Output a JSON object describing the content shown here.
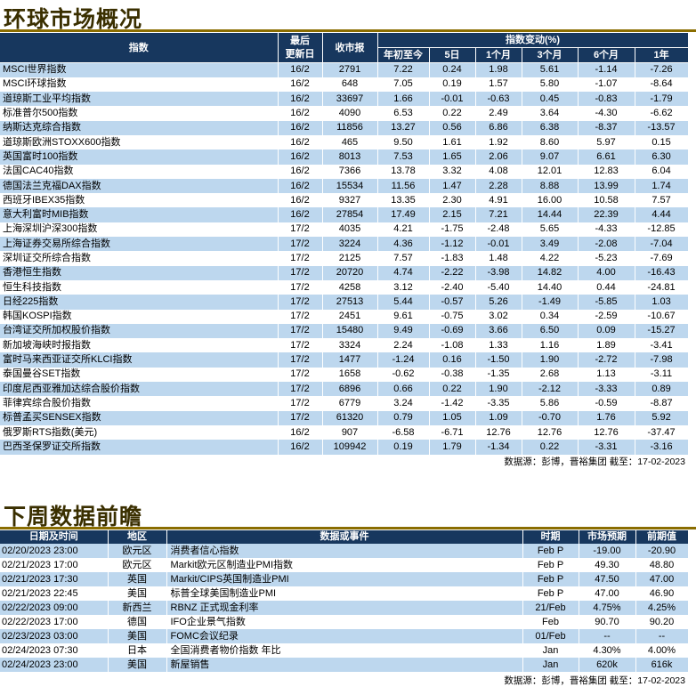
{
  "market": {
    "title": "环球市场概况",
    "headers": {
      "index": "指数",
      "last_update": "最后\n更新日",
      "close": "收市报",
      "change_group": "指数变动(%)",
      "periods": [
        "年初至今",
        "5日",
        "1个月",
        "3个月",
        "6个月",
        "1年"
      ]
    },
    "rows": [
      {
        "name": "MSCI世界指数",
        "date": "16/2",
        "close": "2791",
        "ytd": "7.22",
        "d5": "0.24",
        "m1": "1.98",
        "m3": "5.61",
        "m6": "-1.14",
        "y1": "-7.26"
      },
      {
        "name": "MSCI环球指数",
        "date": "16/2",
        "close": "648",
        "ytd": "7.05",
        "d5": "0.19",
        "m1": "1.57",
        "m3": "5.80",
        "m6": "-1.07",
        "y1": "-8.64"
      },
      {
        "name": "道琼斯工业平均指数",
        "date": "16/2",
        "close": "33697",
        "ytd": "1.66",
        "d5": "-0.01",
        "m1": "-0.63",
        "m3": "0.45",
        "m6": "-0.83",
        "y1": "-1.79"
      },
      {
        "name": "标准普尔500指数",
        "date": "16/2",
        "close": "4090",
        "ytd": "6.53",
        "d5": "0.22",
        "m1": "2.49",
        "m3": "3.64",
        "m6": "-4.30",
        "y1": "-6.62"
      },
      {
        "name": "纳斯达克综合指数",
        "date": "16/2",
        "close": "11856",
        "ytd": "13.27",
        "d5": "0.56",
        "m1": "6.86",
        "m3": "6.38",
        "m6": "-8.37",
        "y1": "-13.57"
      },
      {
        "name": "道琼斯欧洲STOXX600指数",
        "date": "16/2",
        "close": "465",
        "ytd": "9.50",
        "d5": "1.61",
        "m1": "1.92",
        "m3": "8.60",
        "m6": "5.97",
        "y1": "0.15"
      },
      {
        "name": "英国富时100指数",
        "date": "16/2",
        "close": "8013",
        "ytd": "7.53",
        "d5": "1.65",
        "m1": "2.06",
        "m3": "9.07",
        "m6": "6.61",
        "y1": "6.30"
      },
      {
        "name": "法国CAC40指数",
        "date": "16/2",
        "close": "7366",
        "ytd": "13.78",
        "d5": "3.32",
        "m1": "4.08",
        "m3": "12.01",
        "m6": "12.83",
        "y1": "6.04"
      },
      {
        "name": "德国法兰克福DAX指数",
        "date": "16/2",
        "close": "15534",
        "ytd": "11.56",
        "d5": "1.47",
        "m1": "2.28",
        "m3": "8.88",
        "m6": "13.99",
        "y1": "1.74"
      },
      {
        "name": "西班牙IBEX35指数",
        "date": "16/2",
        "close": "9327",
        "ytd": "13.35",
        "d5": "2.30",
        "m1": "4.91",
        "m3": "16.00",
        "m6": "10.58",
        "y1": "7.57"
      },
      {
        "name": "意大利富时MIB指数",
        "date": "16/2",
        "close": "27854",
        "ytd": "17.49",
        "d5": "2.15",
        "m1": "7.21",
        "m3": "14.44",
        "m6": "22.39",
        "y1": "4.44"
      },
      {
        "name": "上海深圳沪深300指数",
        "date": "17/2",
        "close": "4035",
        "ytd": "4.21",
        "d5": "-1.75",
        "m1": "-2.48",
        "m3": "5.65",
        "m6": "-4.33",
        "y1": "-12.85"
      },
      {
        "name": "上海证券交易所综合指数",
        "date": "17/2",
        "close": "3224",
        "ytd": "4.36",
        "d5": "-1.12",
        "m1": "-0.01",
        "m3": "3.49",
        "m6": "-2.08",
        "y1": "-7.04"
      },
      {
        "name": "深圳证交所综合指数",
        "date": "17/2",
        "close": "2125",
        "ytd": "7.57",
        "d5": "-1.83",
        "m1": "1.48",
        "m3": "4.22",
        "m6": "-5.23",
        "y1": "-7.69"
      },
      {
        "name": "香港恒生指数",
        "date": "17/2",
        "close": "20720",
        "ytd": "4.74",
        "d5": "-2.22",
        "m1": "-3.98",
        "m3": "14.82",
        "m6": "4.00",
        "y1": "-16.43"
      },
      {
        "name": "恒生科技指数",
        "date": "17/2",
        "close": "4258",
        "ytd": "3.12",
        "d5": "-2.40",
        "m1": "-5.40",
        "m3": "14.40",
        "m6": "0.44",
        "y1": "-24.81"
      },
      {
        "name": "日经225指数",
        "date": "17/2",
        "close": "27513",
        "ytd": "5.44",
        "d5": "-0.57",
        "m1": "5.26",
        "m3": "-1.49",
        "m6": "-5.85",
        "y1": "1.03"
      },
      {
        "name": "韩国KOSPI指数",
        "date": "17/2",
        "close": "2451",
        "ytd": "9.61",
        "d5": "-0.75",
        "m1": "3.02",
        "m3": "0.34",
        "m6": "-2.59",
        "y1": "-10.67"
      },
      {
        "name": "台湾证交所加权股价指数",
        "date": "17/2",
        "close": "15480",
        "ytd": "9.49",
        "d5": "-0.69",
        "m1": "3.66",
        "m3": "6.50",
        "m6": "0.09",
        "y1": "-15.27"
      },
      {
        "name": "新加坡海峡时报指数",
        "date": "17/2",
        "close": "3324",
        "ytd": "2.24",
        "d5": "-1.08",
        "m1": "1.33",
        "m3": "1.16",
        "m6": "1.89",
        "y1": "-3.41"
      },
      {
        "name": "富时马来西亚证交所KLCI指数",
        "date": "17/2",
        "close": "1477",
        "ytd": "-1.24",
        "d5": "0.16",
        "m1": "-1.50",
        "m3": "1.90",
        "m6": "-2.72",
        "y1": "-7.98"
      },
      {
        "name": "泰国曼谷SET指数",
        "date": "17/2",
        "close": "1658",
        "ytd": "-0.62",
        "d5": "-0.38",
        "m1": "-1.35",
        "m3": "2.68",
        "m6": "1.13",
        "y1": "-3.11"
      },
      {
        "name": "印度尼西亚雅加达综合股价指数",
        "date": "17/2",
        "close": "6896",
        "ytd": "0.66",
        "d5": "0.22",
        "m1": "1.90",
        "m3": "-2.12",
        "m6": "-3.33",
        "y1": "0.89"
      },
      {
        "name": "菲律宾综合股价指数",
        "date": "17/2",
        "close": "6779",
        "ytd": "3.24",
        "d5": "-1.42",
        "m1": "-3.35",
        "m3": "5.86",
        "m6": "-0.59",
        "y1": "-8.87"
      },
      {
        "name": "标普孟买SENSEX指数",
        "date": "17/2",
        "close": "61320",
        "ytd": "0.79",
        "d5": "1.05",
        "m1": "1.09",
        "m3": "-0.70",
        "m6": "1.76",
        "y1": "5.92"
      },
      {
        "name": "俄罗斯RTS指数(美元)",
        "date": "16/2",
        "close": "907",
        "ytd": "-6.58",
        "d5": "-6.71",
        "m1": "12.76",
        "m3": "12.76",
        "m6": "12.76",
        "y1": "-37.47"
      },
      {
        "name": "巴西圣保罗证交所指数",
        "date": "16/2",
        "close": "109942",
        "ytd": "0.19",
        "d5": "1.79",
        "m1": "-1.34",
        "m3": "0.22",
        "m6": "-3.31",
        "y1": "-3.16"
      }
    ],
    "source": "数据源：彭博，晋裕集团 截至：17-02-2023"
  },
  "calendar": {
    "title": "下周数据前瞻",
    "headers": {
      "datetime": "日期及时间",
      "region": "地区",
      "event": "数据或事件",
      "period": "时期",
      "forecast": "市场预期",
      "previous": "前期值"
    },
    "rows": [
      {
        "datetime": "02/20/2023 23:00",
        "region": "欧元区",
        "event": "消费者信心指数",
        "period": "Feb P",
        "forecast": "-19.00",
        "previous": "-20.90"
      },
      {
        "datetime": "02/21/2023 17:00",
        "region": "欧元区",
        "event": "Markit欧元区制造业PMI指数",
        "period": "Feb P",
        "forecast": "49.30",
        "previous": "48.80"
      },
      {
        "datetime": "02/21/2023 17:30",
        "region": "英国",
        "event": "Markit/CIPS英国制造业PMI",
        "period": "Feb P",
        "forecast": "47.50",
        "previous": "47.00"
      },
      {
        "datetime": "02/21/2023 22:45",
        "region": "美国",
        "event": "标普全球美国制造业PMI",
        "period": "Feb P",
        "forecast": "47.00",
        "previous": "46.90"
      },
      {
        "datetime": "02/22/2023 09:00",
        "region": "新西兰",
        "event": "RBNZ 正式现金利率",
        "period": "21/Feb",
        "forecast": "4.75%",
        "previous": "4.25%"
      },
      {
        "datetime": "02/22/2023 17:00",
        "region": "德国",
        "event": "IFO企业景气指数",
        "period": "Feb",
        "forecast": "90.70",
        "previous": "90.20"
      },
      {
        "datetime": "02/23/2023 03:00",
        "region": "美国",
        "event": "FOMC会议纪录",
        "period": "01/Feb",
        "forecast": "--",
        "previous": "--"
      },
      {
        "datetime": "02/24/2023 07:30",
        "region": "日本",
        "event": "全国消费者物价指数 年比",
        "period": "Jan",
        "forecast": "4.30%",
        "previous": "4.00%"
      },
      {
        "datetime": "02/24/2023 23:00",
        "region": "美国",
        "event": "新屋销售",
        "period": "Jan",
        "forecast": "620k",
        "previous": "616k"
      }
    ],
    "source": "数据源：彭博，晋裕集团 截至：17-02-2023"
  }
}
